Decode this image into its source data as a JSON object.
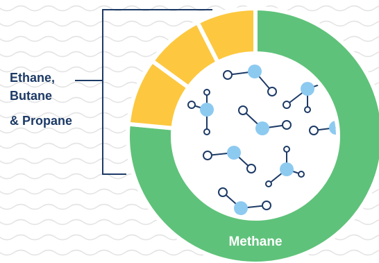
{
  "diagram": {
    "segments": [
      {
        "name": "Methane",
        "label": "Methane",
        "color": "#5fc27a",
        "share": 0.765
      },
      {
        "name": "gas-wedge-1",
        "label": "",
        "color": "#fdc83f",
        "share": 0.085
      },
      {
        "name": "gas-wedge-2",
        "label": "",
        "color": "#fdc83f",
        "share": 0.075
      },
      {
        "name": "gas-wedge-3",
        "label": "",
        "color": "#fdc83f",
        "share": 0.075
      }
    ],
    "side_label": {
      "lines": [
        "Ethane,",
        "Butane",
        "& Propane"
      ],
      "color": "#1c3a66"
    },
    "colors": {
      "background_wave": "#e4e4e4",
      "bracket": "#1c3a66",
      "atom_fill": "#8dcaf0",
      "atom_stroke": "#1c3a66",
      "center_bg": "#ffffff",
      "methane_text": "#ffffff"
    }
  }
}
